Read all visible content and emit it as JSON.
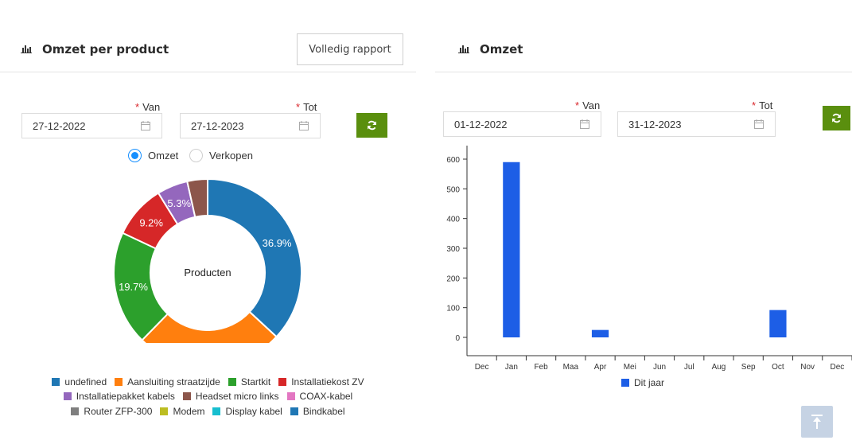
{
  "left_panel": {
    "title": "Omzet per product",
    "report_button": "Volledig rapport",
    "from_label": "Van",
    "to_label": "Tot",
    "from_value": "27-12-2022",
    "to_value": "27-12-2023",
    "radio_options": [
      {
        "label": "Omzet",
        "checked": true
      },
      {
        "label": "Verkopen",
        "checked": false
      }
    ]
  },
  "right_panel": {
    "title": "Omzet",
    "from_label": "Van",
    "to_label": "Tot",
    "from_value": "01-12-2022",
    "to_value": "31-12-2023"
  },
  "icons": {
    "title_icon": "bar-chart-icon",
    "calendar": "calendar-icon",
    "refresh": "refresh-icon",
    "scroll_top": "arrow-up-to-line-icon"
  },
  "colors": {
    "accent_green": "#5a8f0e",
    "radio_blue": "#1890ff",
    "bar_blue": "#1d5ee6",
    "required_star": "#d9262b"
  },
  "chart_data": [
    {
      "type": "pie",
      "center_label": "Producten",
      "slices": [
        {
          "label": "undefined",
          "value": 36.9,
          "display": "36.9%",
          "color": "#1f77b4"
        },
        {
          "label": "Aansluiting straatzijde",
          "value": 25.4,
          "display": "25.4%",
          "color": "#ff7f0e"
        },
        {
          "label": "Startkit",
          "value": 19.7,
          "display": "19.7%",
          "color": "#2ca02c"
        },
        {
          "label": "Installatiekost ZV",
          "value": 9.2,
          "display": "9.2%",
          "color": "#d62728"
        },
        {
          "label": "Installatiepakket kabels",
          "value": 5.3,
          "display": "5.3%",
          "color": "#9467bd"
        },
        {
          "label": "Headset micro links",
          "value": 3.5,
          "display": "",
          "color": "#8c564b"
        },
        {
          "label": "COAX-kabel",
          "value": 0,
          "display": "",
          "color": "#e377c2"
        },
        {
          "label": "Router ZFP-300",
          "value": 0,
          "display": "",
          "color": "#7f7f7f"
        },
        {
          "label": "Modem",
          "value": 0,
          "display": "",
          "color": "#bcbd22"
        },
        {
          "label": "Display kabel",
          "value": 0,
          "display": "",
          "color": "#17becf"
        },
        {
          "label": "Bindkabel",
          "value": 0,
          "display": "",
          "color": "#1f77b4"
        }
      ],
      "legend_rows": [
        [
          "undefined",
          "Aansluiting straatzijde",
          "Startkit",
          "Installatiekost ZV"
        ],
        [
          "Installatiepakket kabels",
          "Headset micro links",
          "COAX-kabel"
        ],
        [
          "Router ZFP-300",
          "Modem",
          "Display kabel",
          "Bindkabel"
        ]
      ]
    },
    {
      "type": "bar",
      "categories": [
        "Dec",
        "Jan",
        "Feb",
        "Maa",
        "Apr",
        "Mei",
        "Jun",
        "Jul",
        "Aug",
        "Sep",
        "Oct",
        "Nov",
        "Dec"
      ],
      "series": [
        {
          "name": "Dit jaar",
          "values": [
            0,
            590,
            0,
            0,
            25,
            0,
            0,
            0,
            0,
            0,
            92,
            0,
            0
          ],
          "color": "#1d5ee6"
        }
      ],
      "y_ticks": [
        0,
        100,
        200,
        300,
        400,
        500,
        600
      ],
      "ylim": [
        -60,
        640
      ],
      "legend": "bottom-center",
      "grid": false
    }
  ]
}
